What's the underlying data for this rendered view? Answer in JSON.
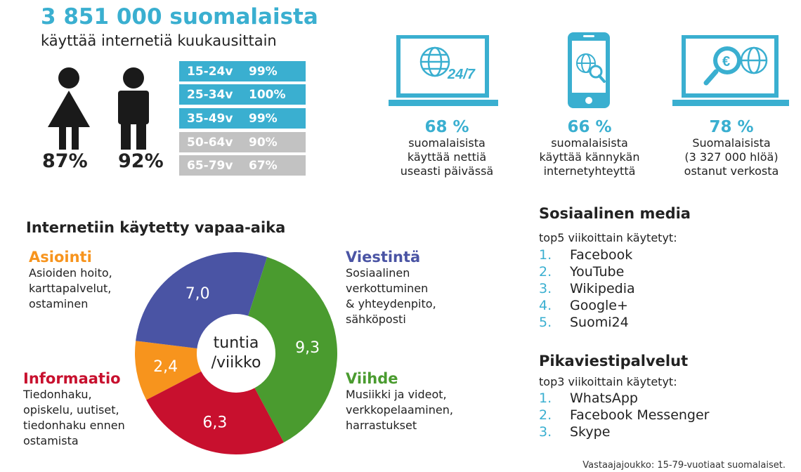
{
  "header": {
    "headline": "3 851 000 suomalaista",
    "subline": "käyttää internetiä kuukausittain"
  },
  "gender": {
    "female_pct": "87%",
    "male_pct": "92%"
  },
  "age_groups": [
    {
      "label": "15-24v",
      "value": "99%",
      "color": "#3aafd0"
    },
    {
      "label": "25-34v",
      "value": "100%",
      "color": "#3aafd0"
    },
    {
      "label": "35-49v",
      "value": "99%",
      "color": "#3aafd0"
    },
    {
      "label": "50-64v",
      "value": "90%",
      "color": "#c2c2c2"
    },
    {
      "label": "65-79v",
      "value": "67%",
      "color": "#c2c2c2"
    }
  ],
  "stats": [
    {
      "icon": "laptop-globe-24-7-icon",
      "pct": "68 %",
      "lines": [
        "suomalaisista",
        "käyttää nettiä",
        "useasti päivässä"
      ],
      "icon_text": "24/7"
    },
    {
      "icon": "phone-globe-search-icon",
      "pct": "66 %",
      "lines": [
        "suomalaisista",
        "käyttää kännykän",
        "internetyhteyttä"
      ]
    },
    {
      "icon": "laptop-euro-search-icon",
      "pct": "78 %",
      "lines": [
        "Suomalaisista",
        "(3 327 000 hlöä)",
        "ostanut verkosta"
      ]
    }
  ],
  "leisure": {
    "title": "Internetiin käytetty vapaa-aika",
    "center_line1": "tuntia",
    "center_line2": "/viikko",
    "categories": [
      {
        "name": "Asiointi",
        "color": "#f7941d",
        "desc": [
          "Asioiden hoito,",
          "karttapalvelut,",
          "ostaminen"
        ]
      },
      {
        "name": "Viestintä",
        "color": "#4a54a4",
        "desc": [
          "Sosiaalinen",
          "verkottuminen",
          "& yhteydenpito,",
          "sähköposti"
        ]
      },
      {
        "name": "Informaatio",
        "color": "#c8102e",
        "desc": [
          "Tiedonhaku,",
          "opiskelu, uutiset,",
          "tiedonhaku ennen",
          "ostamista"
        ]
      },
      {
        "name": "Viihde",
        "color": "#4a9b2f",
        "desc": [
          "Musiikki ja videot,",
          "verkkopelaaminen,",
          "harrastukset"
        ]
      }
    ]
  },
  "chart_data": {
    "type": "pie",
    "categories": [
      "Asiointi",
      "Viestintä",
      "Viihde",
      "Informaatio"
    ],
    "values": [
      2.4,
      7.0,
      9.3,
      6.3
    ],
    "labels": [
      "2,4",
      "7,0",
      "9,3",
      "6,3"
    ],
    "colors": [
      "#f7941d",
      "#4a54a4",
      "#4a9b2f",
      "#c8102e"
    ],
    "donut": true
  },
  "social": {
    "title": "Sosiaalinen media",
    "subtitle": "top5 viikoittain käytetyt:",
    "items": [
      {
        "num": "1.",
        "name": "Facebook"
      },
      {
        "num": "2.",
        "name": "YouTube"
      },
      {
        "num": "3.",
        "name": "Wikipedia"
      },
      {
        "num": "4.",
        "name": "Google+"
      },
      {
        "num": "5.",
        "name": "Suomi24"
      }
    ]
  },
  "messaging": {
    "title": "Pikaviestipalvelut",
    "subtitle": "top3 viikoittain käytetyt:",
    "items": [
      {
        "num": "1.",
        "name": "WhatsApp"
      },
      {
        "num": "2.",
        "name": "Facebook Messenger"
      },
      {
        "num": "3.",
        "name": "Skype"
      }
    ]
  },
  "footnote": "Vastaajajoukko: 15-79-vuotiaat suomalaiset.",
  "colors": {
    "accent": "#3aafd0",
    "dark": "#1a1a1a",
    "grey": "#c2c2c2"
  }
}
